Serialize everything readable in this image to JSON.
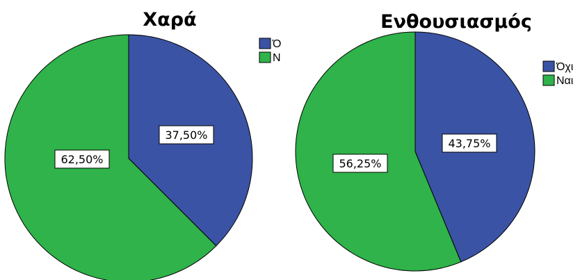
{
  "chart_data": [
    {
      "type": "pie",
      "title": "Χαρά",
      "categories": [
        "Όχι",
        "Ναι"
      ],
      "values": [
        37.5,
        62.5
      ],
      "labels": [
        "37,50%",
        "62,50%"
      ],
      "colors": [
        "#3b53a4",
        "#2fb34a"
      ],
      "legend_entries": [
        "Ό",
        "N"
      ],
      "legend": "right"
    },
    {
      "type": "pie",
      "title": "Ενθουσιασμός",
      "categories": [
        "Όχι",
        "Ναι"
      ],
      "values": [
        43.75,
        56.25
      ],
      "labels": [
        "43,75%",
        "56,25%"
      ],
      "colors": [
        "#3b53a4",
        "#2fb34a"
      ],
      "legend_entries": [
        "Όχι",
        "Ναι"
      ],
      "legend": "right"
    }
  ]
}
